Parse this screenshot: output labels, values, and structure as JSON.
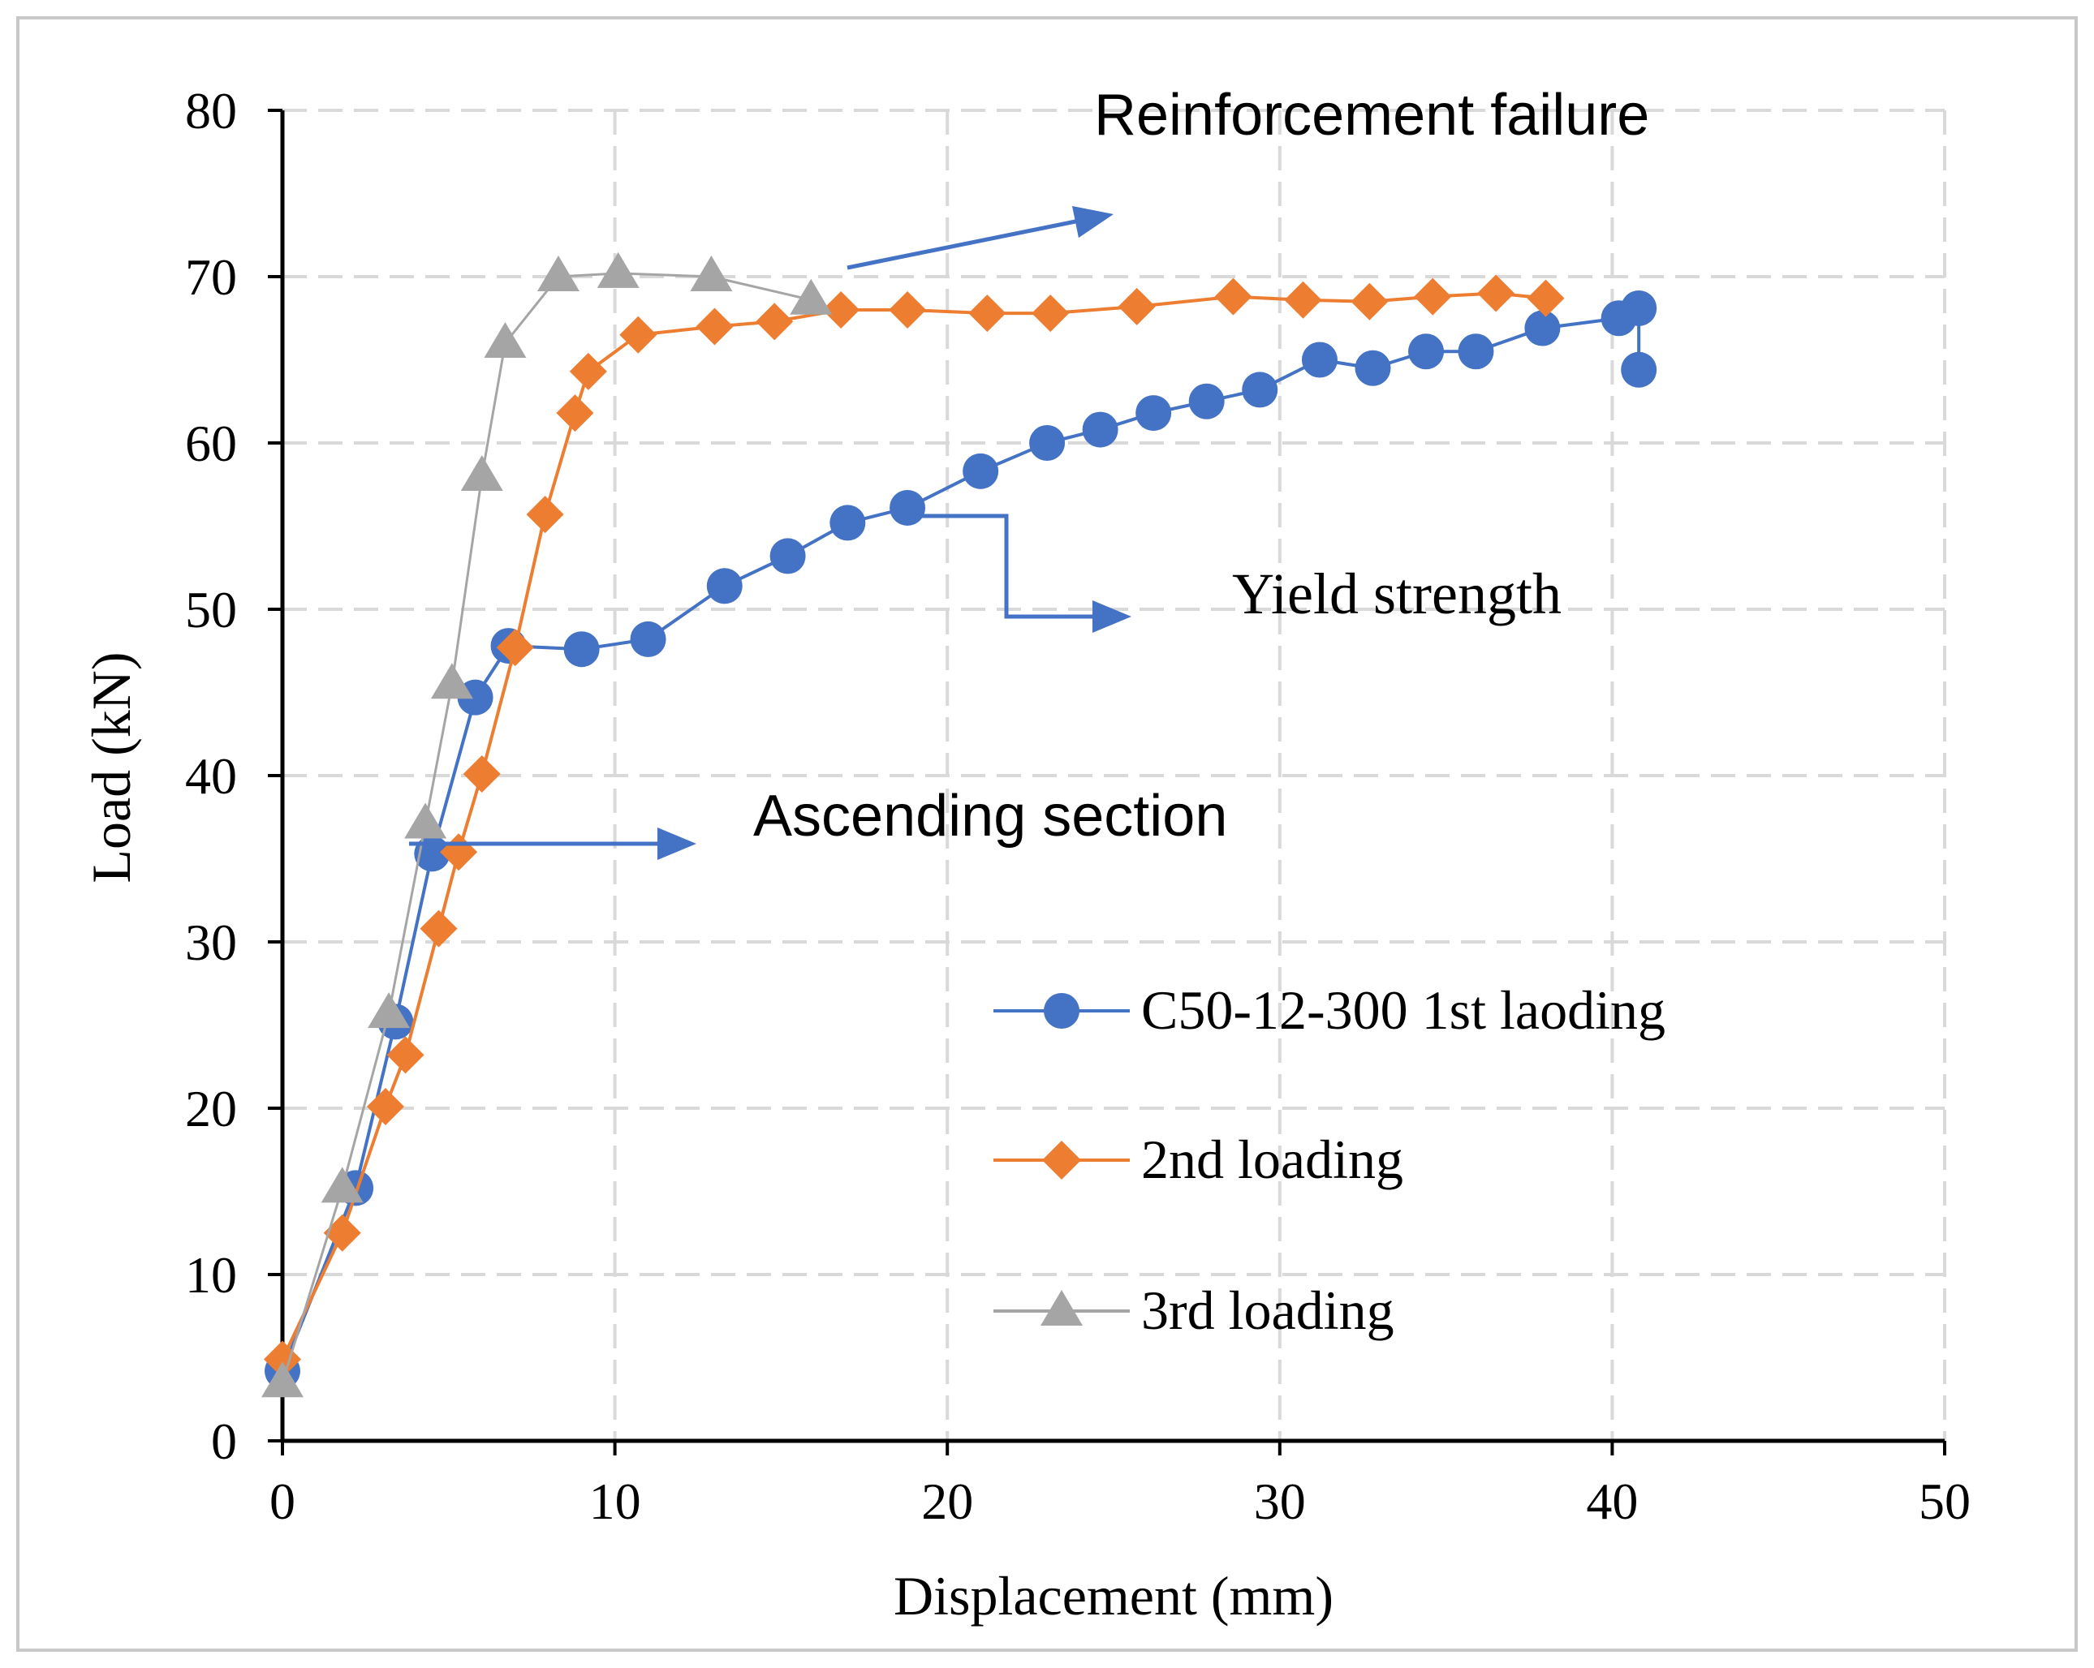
{
  "chart_data": {
    "type": "line",
    "xlabel": "Displacement (mm)",
    "ylabel": "Load (kN)",
    "xlim": [
      0,
      50
    ],
    "ylim": [
      0,
      80
    ],
    "xticks": [
      0,
      10,
      20,
      30,
      40,
      50
    ],
    "yticks": [
      0,
      10,
      20,
      30,
      40,
      50,
      60,
      70,
      80
    ],
    "grid": true,
    "legend_position": "bottom-right",
    "series": [
      {
        "name": "C50-12-300 1st laoding",
        "color": "#4472C4",
        "marker": "circle",
        "x": [
          0.0,
          2.2,
          3.4,
          4.5,
          5.8,
          6.8,
          9.0,
          11.0,
          13.3,
          15.2,
          17.0,
          18.8,
          21.0,
          23.0,
          24.6,
          26.2,
          27.8,
          29.4,
          31.2,
          32.8,
          34.4,
          35.9,
          37.9,
          40.2,
          40.8,
          40.8
        ],
        "y": [
          4.2,
          15.2,
          25.2,
          35.3,
          44.7,
          47.8,
          47.6,
          48.2,
          51.4,
          53.2,
          55.2,
          56.1,
          58.3,
          60.0,
          60.8,
          61.8,
          62.5,
          63.2,
          65.0,
          64.5,
          65.5,
          65.5,
          66.9,
          67.5,
          68.1,
          64.4
        ]
      },
      {
        "name": "2nd loading",
        "color": "#ED7D31",
        "marker": "diamond",
        "x": [
          0.0,
          1.8,
          3.1,
          3.7,
          4.7,
          5.3,
          6.0,
          7.0,
          7.9,
          8.8,
          9.2,
          10.7,
          13.0,
          14.8,
          16.8,
          18.8,
          21.2,
          23.1,
          25.7,
          28.6,
          30.7,
          32.7,
          34.6,
          36.5,
          38.0
        ],
        "y": [
          4.9,
          12.5,
          20.1,
          23.2,
          30.8,
          35.4,
          40.1,
          47.7,
          55.7,
          61.8,
          64.3,
          66.5,
          67.0,
          67.3,
          68.0,
          68.0,
          67.8,
          67.8,
          68.2,
          68.8,
          68.6,
          68.5,
          68.8,
          69.0,
          68.7
        ]
      },
      {
        "name": "3rd loading",
        "color": "#A5A5A5",
        "marker": "triangle",
        "x": [
          0.0,
          1.8,
          3.2,
          4.3,
          5.1,
          6.0,
          6.7,
          8.3,
          10.1,
          12.9,
          15.9
        ],
        "y": [
          3.5,
          15.2,
          25.7,
          37.1,
          45.5,
          58.0,
          66.0,
          70.0,
          70.2,
          70.0,
          68.6
        ]
      }
    ],
    "annotations": [
      {
        "text": "Reinforcement failure",
        "points_to": [
          24.8,
          74.1
        ]
      },
      {
        "text": "Yield strength",
        "points_to": [
          25.8,
          49.8
        ]
      },
      {
        "text": "Ascending section",
        "points_to": [
          12.6,
          35.9
        ]
      }
    ]
  },
  "legend": {
    "items": [
      {
        "label": "C50-12-300 1st laoding"
      },
      {
        "label": "2nd loading"
      },
      {
        "label": "3rd loading"
      }
    ]
  },
  "annotations_text": {
    "reinforcement_failure": "Reinforcement failure",
    "yield_strength": "Yield strength",
    "ascending_section": "Ascending section"
  },
  "colors": {
    "arrow": "#4472C4",
    "grid": "#D9D9D9",
    "axis": "#000000",
    "frame": "#C8C8C8"
  }
}
